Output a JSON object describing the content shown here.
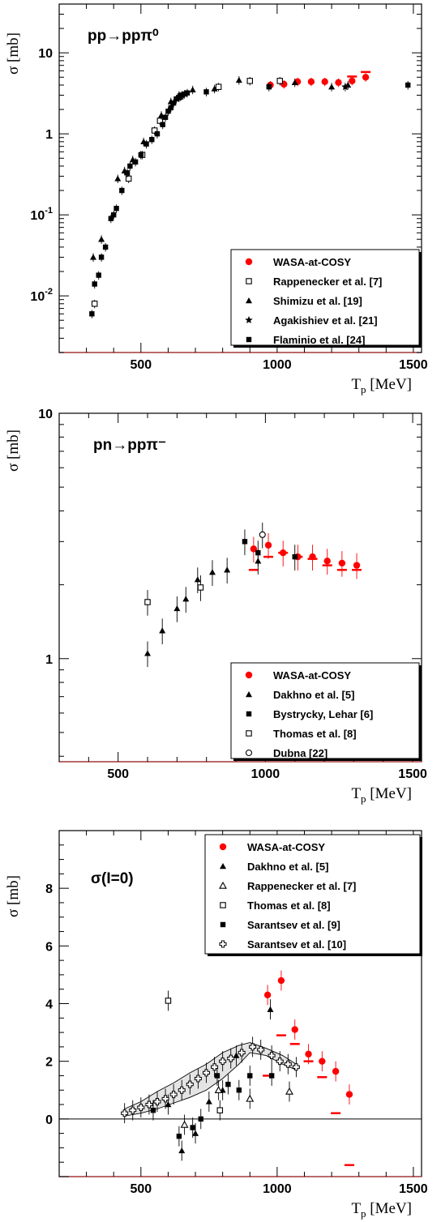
{
  "chart_data": [
    {
      "type": "scatter",
      "title": "pp→ppπ⁰",
      "ylabel": "σ [mb]",
      "xlabel": "T",
      "xlabel_sub": "p",
      "xlabel_unit": " [MeV]",
      "xlim": [
        200,
        1530
      ],
      "ylim": [
        0.002,
        40
      ],
      "yscale": "log",
      "xticks": [
        500,
        1000,
        1500
      ],
      "xtick_labels": [
        "500",
        "1000",
        "1500"
      ],
      "yticks": [
        0.01,
        0.1,
        1,
        10
      ],
      "ytick_labels": [
        "10-2",
        "10-1",
        "1",
        "10"
      ],
      "legend_position": "bottom-right",
      "series": [
        {
          "name": "WASA-at-COSY",
          "marker": "dot",
          "color": "#ff0000",
          "x": [
            975,
            1025,
            1075,
            1125,
            1175,
            1225,
            1275,
            1325
          ],
          "y": [
            4.0,
            4.1,
            4.4,
            4.4,
            4.4,
            4.3,
            4.5,
            5.0
          ],
          "calc_x": [
            1275,
            1325
          ],
          "calc_y": [
            5.1,
            5.8
          ]
        },
        {
          "name": "Rappenecker et al. [7]",
          "marker": "open-square",
          "color": "#000000",
          "x": [
            330,
            455,
            505,
            550,
            570,
            645,
            785,
            900,
            1010
          ],
          "y": [
            0.008,
            0.28,
            0.55,
            1.1,
            1.45,
            2.9,
            3.8,
            4.5,
            4.5
          ]
        },
        {
          "name": "Shimizu et al. [19]",
          "marker": "triangle",
          "color": "#000000",
          "x": [
            325,
            355,
            415,
            440,
            470,
            510,
            575,
            610,
            640,
            690,
            770,
            860,
            1065,
            1200,
            1260
          ],
          "y": [
            0.03,
            0.05,
            0.28,
            0.35,
            0.48,
            0.8,
            1.7,
            2.5,
            3.0,
            3.5,
            3.6,
            4.6,
            4.3,
            3.8,
            4.0
          ]
        },
        {
          "name": "Agakishiev et al. [21]",
          "marker": "star",
          "color": "#000000",
          "x": [
            1250
          ],
          "y": [
            3.8
          ]
        },
        {
          "name": "Flaminio et al. [24]",
          "marker": "square",
          "color": "#000000",
          "x": [
            320,
            330,
            345,
            355,
            370,
            390,
            400,
            410,
            430,
            450,
            460,
            480,
            500,
            520,
            540,
            560,
            580,
            590,
            600,
            610,
            620,
            630,
            640,
            650,
            660,
            670,
            740,
            970,
            1480
          ],
          "y": [
            0.006,
            0.014,
            0.018,
            0.03,
            0.04,
            0.09,
            0.1,
            0.12,
            0.2,
            0.33,
            0.4,
            0.45,
            0.55,
            0.75,
            0.85,
            1.0,
            1.3,
            1.6,
            1.9,
            2.1,
            2.4,
            2.7,
            2.8,
            3.0,
            3.1,
            3.2,
            3.3,
            3.8,
            4.0
          ]
        }
      ]
    },
    {
      "type": "scatter",
      "title": "pn→ppπ⁻",
      "ylabel": "σ [mb]",
      "xlabel": "T",
      "xlabel_sub": "p",
      "xlabel_unit": " [MeV]",
      "xlim": [
        300,
        1530
      ],
      "ylim": [
        0.38,
        10
      ],
      "yscale": "log",
      "xticks": [
        500,
        1000,
        1500
      ],
      "xtick_labels": [
        "500",
        "1000",
        "1500"
      ],
      "yticks": [
        1,
        10
      ],
      "ytick_labels": [
        "1",
        "10"
      ],
      "legend_position": "bottom-right",
      "series": [
        {
          "name": "WASA-at-COSY",
          "marker": "dot",
          "color": "#ff0000",
          "x": [
            960,
            1010,
            1060,
            1110,
            1160,
            1210,
            1260,
            1310
          ],
          "y": [
            2.8,
            2.9,
            2.7,
            2.6,
            2.6,
            2.5,
            2.45,
            2.4
          ],
          "calc_x": [
            960,
            1010,
            1060,
            1110,
            1160,
            1210,
            1260,
            1310
          ],
          "calc_y": [
            2.3,
            2.6,
            2.7,
            2.6,
            2.55,
            2.4,
            2.3,
            2.3
          ]
        },
        {
          "name": "Dakhno et al. [5]",
          "marker": "triangle",
          "color": "#000000",
          "x": [
            600,
            650,
            700,
            730,
            770,
            820,
            870,
            975
          ],
          "y": [
            1.05,
            1.3,
            1.6,
            1.75,
            2.1,
            2.25,
            2.3,
            2.5
          ]
        },
        {
          "name": "Bystrycky, Lehar [6]",
          "marker": "square",
          "color": "#000000",
          "x": [
            930,
            975,
            1100
          ],
          "y": [
            3.0,
            2.7,
            2.6
          ]
        },
        {
          "name": "Thomas et al. [8]",
          "marker": "open-square",
          "color": "#000000",
          "x": [
            600,
            780
          ],
          "y": [
            1.7,
            1.95
          ]
        },
        {
          "name": "Dubna [22]",
          "marker": "open-circle",
          "color": "#000000",
          "x": [
            990
          ],
          "y": [
            3.2
          ]
        }
      ]
    },
    {
      "type": "scatter",
      "title": "σ(I=0)",
      "ylabel": "σ [mb]",
      "xlabel": "T",
      "xlabel_sub": "p",
      "xlabel_unit": " [MeV]",
      "xlim": [
        200,
        1530
      ],
      "ylim": [
        -2.0,
        10.0
      ],
      "yscale": "linear",
      "xticks": [
        500,
        1000,
        1500
      ],
      "xtick_labels": [
        "500",
        "1000",
        "1500"
      ],
      "yticks": [
        0,
        2,
        4,
        6,
        8
      ],
      "ytick_labels": [
        "0",
        "2",
        "4",
        "6",
        "8"
      ],
      "legend_position": "top-right",
      "series": [
        {
          "name": "WASA-at-COSY",
          "marker": "dot",
          "color": "#ff0000",
          "x": [
            965,
            1015,
            1065,
            1115,
            1165,
            1215,
            1265
          ],
          "y": [
            4.3,
            4.8,
            3.1,
            2.25,
            2.0,
            1.65,
            0.85
          ],
          "calc_x": [
            965,
            1015,
            1065,
            1115,
            1165,
            1215,
            1265
          ],
          "calc_y": [
            1.5,
            2.9,
            2.6,
            2.0,
            1.45,
            0.2,
            -1.6
          ]
        },
        {
          "name": "Dakhno et al. [5]",
          "marker": "triangle",
          "color": "#000000",
          "x": [
            600,
            650,
            700,
            750,
            800,
            850,
            975
          ],
          "y": [
            0.5,
            -1.1,
            -0.5,
            0.6,
            1.0,
            2.2,
            3.8
          ]
        },
        {
          "name": "Rappenecker et al. [7]",
          "marker": "open-triangle",
          "color": "#000000",
          "x": [
            660,
            785,
            900,
            1045
          ],
          "y": [
            -0.2,
            1.0,
            0.7,
            0.95
          ]
        },
        {
          "name": "Thomas et al. [8]",
          "marker": "open-square",
          "color": "#000000",
          "x": [
            600,
            790
          ],
          "y": [
            4.1,
            0.3
          ]
        },
        {
          "name": "Sarantsev et al. [9]",
          "marker": "square",
          "color": "#000000",
          "x": [
            545,
            640,
            690,
            720,
            780,
            820,
            860,
            900,
            980
          ],
          "y": [
            0.3,
            -0.6,
            -0.3,
            0.0,
            1.5,
            1.2,
            1.0,
            1.5,
            1.5
          ]
        },
        {
          "name": "Sarantsev et al. [10]",
          "marker": "open-cross",
          "color": "#000000",
          "x": [
            440,
            470,
            500,
            530,
            560,
            590,
            620,
            650,
            680,
            710,
            740,
            770,
            800,
            830,
            870,
            910,
            940,
            980,
            1010,
            1040,
            1070
          ],
          "y": [
            0.2,
            0.3,
            0.4,
            0.5,
            0.6,
            0.7,
            0.85,
            1.0,
            1.2,
            1.4,
            1.6,
            1.8,
            2.0,
            2.1,
            2.3,
            2.5,
            2.4,
            2.2,
            2.0,
            1.9,
            1.8
          ]
        }
      ],
      "band": {
        "x": [
          440,
          500,
          560,
          620,
          680,
          740,
          800,
          860,
          900,
          960,
          1020,
          1070
        ],
        "lower": [
          0.1,
          0.2,
          0.35,
          0.55,
          0.75,
          1.0,
          1.4,
          1.9,
          2.3,
          2.2,
          1.9,
          1.7
        ],
        "upper": [
          0.35,
          0.6,
          0.95,
          1.25,
          1.6,
          1.9,
          2.3,
          2.55,
          2.65,
          2.45,
          2.2,
          1.9
        ]
      }
    }
  ]
}
